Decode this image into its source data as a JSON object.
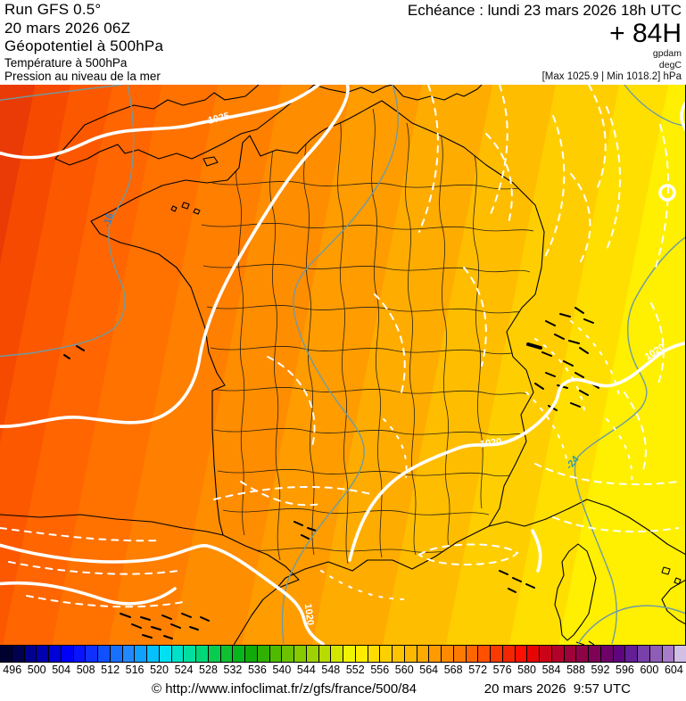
{
  "header": {
    "run_title": "Run GFS 0.5°",
    "run_date": "20 mars 2026 06Z",
    "field_geopotential": "Géopotentiel à 500hPa",
    "field_temperature": "Température à 500hPa",
    "field_pressure": "Pression au niveau de la mer",
    "echeance": "Echéance : lundi 23 mars 2026 18h UTC",
    "forecast_hour": "+ 84H",
    "unit_geopotential": "gpdam",
    "unit_temperature": "degC",
    "pressure_minmax": "[Max 1025.9 | Min 1018.2] hPa"
  },
  "map": {
    "contour_labels": [
      {
        "text": "1025",
        "type": "pressure"
      },
      {
        "text": "1020",
        "type": "pressure"
      },
      {
        "text": "1020",
        "type": "pressure"
      },
      {
        "text": "1020",
        "type": "pressure"
      },
      {
        "text": "-16",
        "type": "temperature"
      },
      {
        "text": "-24",
        "type": "temperature"
      }
    ],
    "band_colors": [
      "#ea3b06",
      "#f54a00",
      "#fc5800",
      "#ff6500",
      "#ff7200",
      "#ff7f00",
      "#ff8d00",
      "#ff9c00",
      "#ffac00",
      "#ffbd00",
      "#ffce00",
      "#ffdf00",
      "#ffef00"
    ],
    "band_offsets": [
      0,
      5,
      10,
      16,
      23,
      31,
      40,
      50,
      60,
      70,
      79,
      88,
      95
    ],
    "colors": {
      "isobar": "#ffffff",
      "temp_contour": "#6f9ba2",
      "temp_label_minus16": "#3a7cc8",
      "temp_label_minus24": "#2a9ab0",
      "coastline": "#000000"
    }
  },
  "colorbar": {
    "cells": [
      "#010130",
      "#010150",
      "#000090",
      "#0000b0",
      "#0000d8",
      "#0000f8",
      "#0814ff",
      "#1030ff",
      "#1050ff",
      "#1870ff",
      "#2288ff",
      "#12a0ff",
      "#04c0fc",
      "#00e0f0",
      "#00e2c8",
      "#00dfa0",
      "#00d878",
      "#08cc50",
      "#10c030",
      "#06b61c",
      "#12aa0a",
      "#30b000",
      "#50ba00",
      "#6cc200",
      "#86ca00",
      "#9ed200",
      "#b8dc00",
      "#d2e600",
      "#f0f400",
      "#ffec00",
      "#ffdc00",
      "#ffd000",
      "#ffc400",
      "#ffb800",
      "#ffaa00",
      "#ff9a00",
      "#ff8a00",
      "#ff7a00",
      "#ff6600",
      "#ff5000",
      "#fa3a00",
      "#f22600",
      "#fc1000",
      "#e60505",
      "#cc0318",
      "#b2022a",
      "#9e0238",
      "#8e0246",
      "#7e0256",
      "#6e0268",
      "#5e057e",
      "#641e96",
      "#7840a8",
      "#8f5cb8",
      "#a87cc8",
      "#d2bfe6"
    ],
    "labels": [
      "496",
      "500",
      "504",
      "508",
      "512",
      "516",
      "520",
      "524",
      "528",
      "532",
      "536",
      "540",
      "544",
      "548",
      "552",
      "556",
      "560",
      "564",
      "568",
      "572",
      "576",
      "580",
      "584",
      "588",
      "592",
      "596",
      "600",
      "604"
    ]
  },
  "footer": {
    "copyright": "© http://www.infoclimat.fr/z/gfs/france/500/84",
    "timestamp": "20 mars 2026  9:57 UTC"
  }
}
